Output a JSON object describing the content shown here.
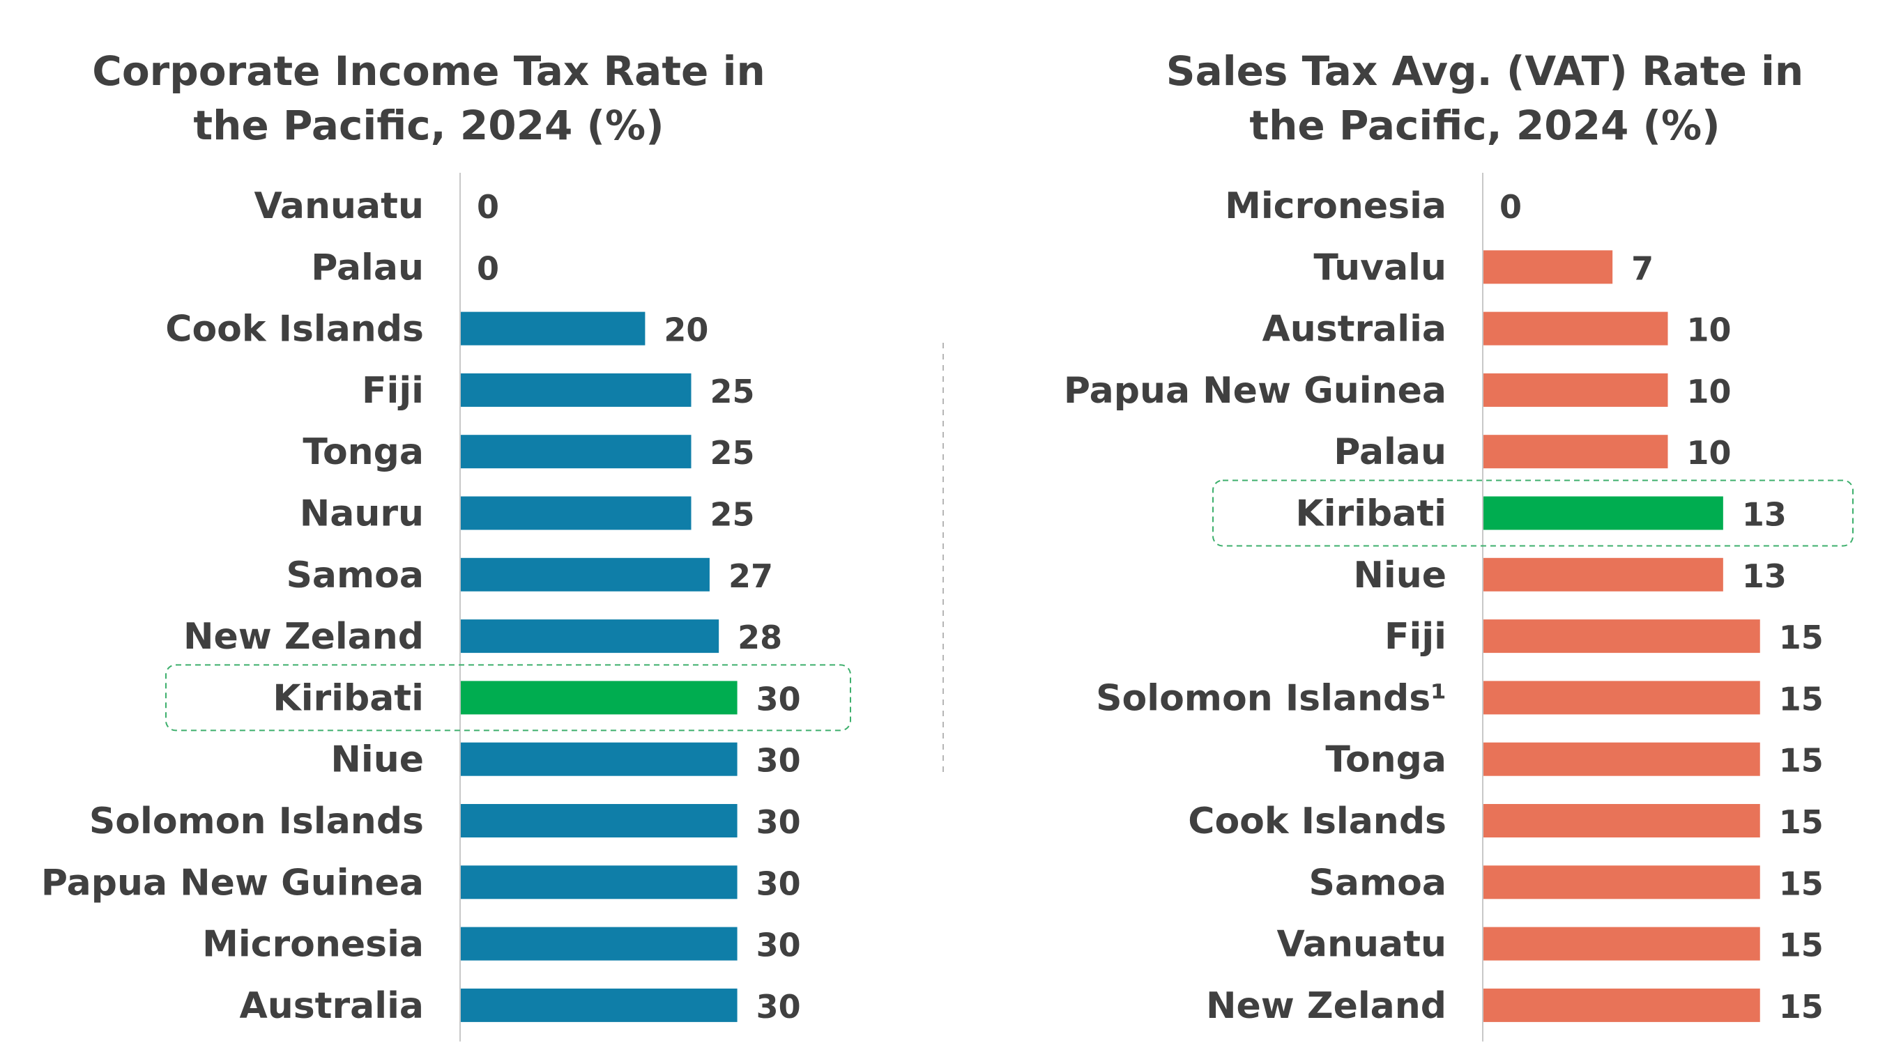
{
  "colors": {
    "text": "#404040",
    "left_bar": "#0f7ea8",
    "right_bar": "#e87358",
    "highlight_bar": "#00ad50",
    "highlight_box": "#3daf6c",
    "axis": "#c8c8c8",
    "divider": "#b5b5b5"
  },
  "chart_data": [
    {
      "type": "bar",
      "orientation": "horizontal",
      "title_lines": [
        "Corporate Income Tax Rate in",
        "the Pacific, 2024 (%)"
      ],
      "categories": [
        "Vanuatu",
        "Palau",
        "Cook Islands",
        "Fiji",
        "Tonga",
        "Nauru",
        "Samoa",
        "New Zeland",
        "Kiribati",
        "Niue",
        "Solomon Islands",
        "Papua New Guinea",
        "Micronesia",
        "Australia"
      ],
      "values": [
        0,
        0,
        20,
        25,
        25,
        25,
        27,
        28,
        30,
        30,
        30,
        30,
        30,
        30
      ],
      "highlight": "Kiribati",
      "xlim": [
        0,
        30
      ],
      "grid": false,
      "data_labels": true
    },
    {
      "type": "bar",
      "orientation": "horizontal",
      "title_lines": [
        "Sales Tax Avg. (VAT) Rate in",
        "the Pacific, 2024 (%)"
      ],
      "categories": [
        "Micronesia",
        "Tuvalu",
        "Australia",
        "Papua New Guinea",
        "Palau",
        "Kiribati",
        "Niue",
        "Fiji",
        "Solomon Islands¹",
        "Tonga",
        "Cook Islands",
        "Samoa",
        "Vanuatu",
        "New Zeland"
      ],
      "values": [
        0,
        7,
        10,
        10,
        10,
        13,
        13,
        15,
        15,
        15,
        15,
        15,
        15,
        15
      ],
      "highlight": "Kiribati",
      "xlim": [
        0,
        15
      ],
      "grid": false,
      "data_labels": true
    }
  ]
}
